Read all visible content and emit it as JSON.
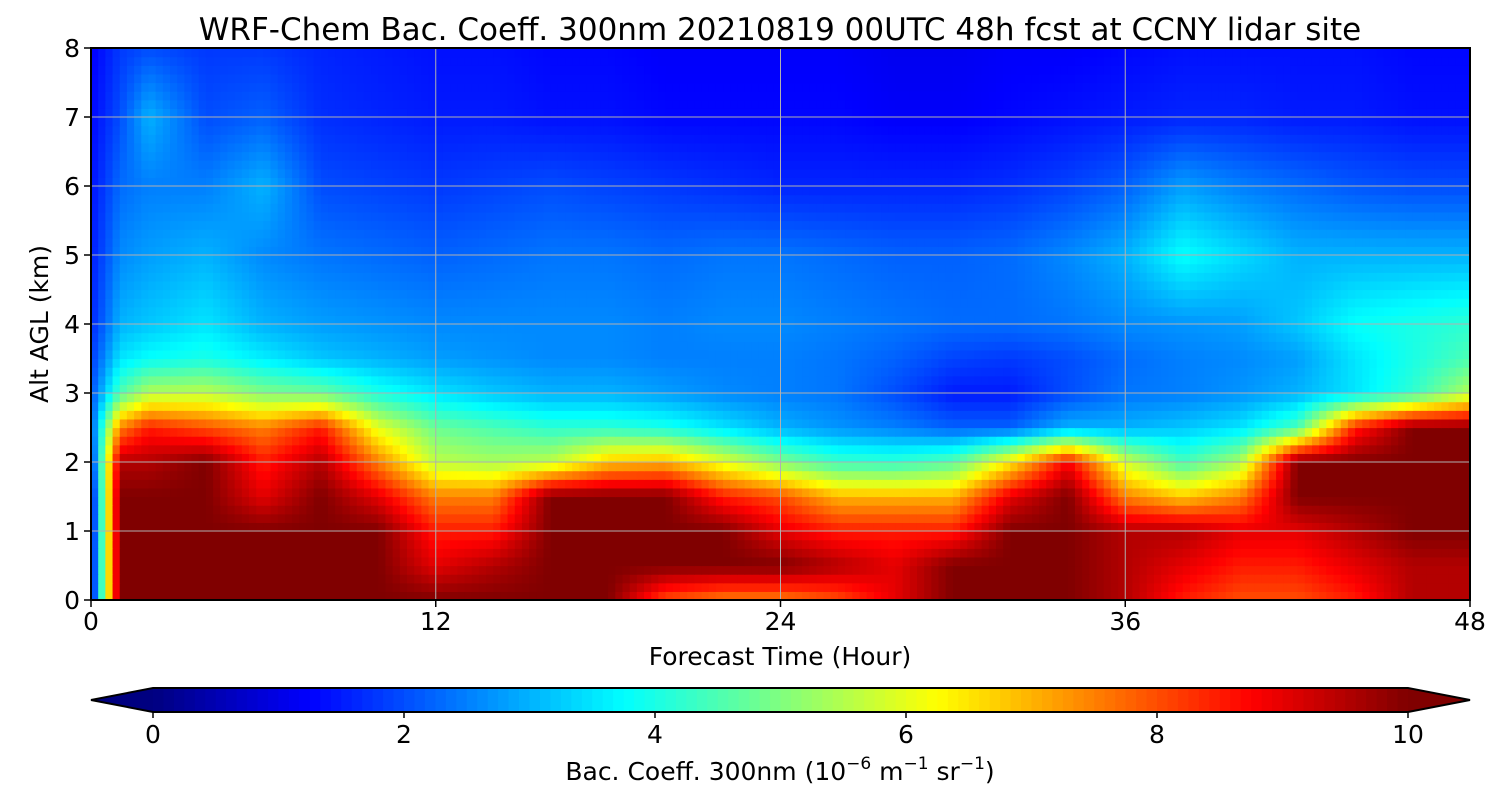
{
  "chart_data": {
    "type": "heatmap",
    "title": "WRF-Chem Bac. Coeff. 300nm  20210819 00UTC 48h fcst at CCNY lidar site",
    "xlabel": "Forecast Time (Hour)",
    "ylabel": "Alt AGL (km)",
    "xlim": [
      0,
      48
    ],
    "ylim": [
      0,
      8
    ],
    "x_ticks": [
      "0",
      "12",
      "24",
      "36",
      "48"
    ],
    "y_ticks": [
      "0",
      "1",
      "2",
      "3",
      "4",
      "5",
      "6",
      "7",
      "8"
    ],
    "grid": true,
    "colormap": "jet",
    "colorbar": {
      "label_main": "Bac. Coeff. 300nm  (10",
      "label_exp1": "−6",
      "label_mid": " m",
      "label_exp2": "−1",
      "label_mid2": " sr",
      "label_exp3": "−1",
      "label_end": ")",
      "range": [
        0,
        10
      ],
      "ticks": [
        "0",
        "2",
        "4",
        "6",
        "8",
        "10"
      ],
      "extend": "both",
      "placement": "bottom"
    },
    "x": [
      0,
      1,
      2,
      4,
      6,
      8,
      10,
      12,
      14,
      16,
      18,
      20,
      22,
      24,
      26,
      28,
      30,
      32,
      34,
      36,
      38,
      40,
      42,
      44,
      46,
      48
    ],
    "y": [
      0,
      0.5,
      1,
      1.5,
      2,
      2.5,
      3,
      3.5,
      4,
      5,
      6,
      7,
      8
    ],
    "values": [
      [
        1.0,
        10,
        10,
        10,
        10,
        10,
        10,
        10,
        10,
        10,
        10,
        8.0,
        7.5,
        7.5,
        8.0,
        9.0,
        10,
        10,
        10,
        9.5,
        8.5,
        8.0,
        8.0,
        8.5,
        9.5,
        9.5
      ],
      [
        1.0,
        10,
        10,
        10,
        10,
        10,
        10,
        9.0,
        9.5,
        10,
        10,
        10,
        10,
        10,
        9.5,
        9.0,
        10,
        10,
        10,
        9.5,
        9.0,
        8.5,
        8.5,
        9.0,
        9.5,
        9.5
      ],
      [
        1.0,
        10,
        10,
        10,
        10,
        10,
        10,
        8.5,
        8.5,
        10,
        10,
        10,
        10,
        9.0,
        8.5,
        8.5,
        8.5,
        10,
        10,
        9.5,
        9.5,
        9.0,
        9.0,
        9.5,
        10,
        10
      ],
      [
        1.0,
        10,
        10,
        10,
        9.0,
        10,
        9.0,
        7.5,
        7.5,
        10,
        10,
        10,
        8.5,
        8.0,
        7.0,
        7.0,
        7.0,
        9.0,
        10,
        7.5,
        6.8,
        7.5,
        10,
        10,
        10,
        10
      ],
      [
        1.5,
        9.5,
        9.5,
        10,
        8.5,
        9.5,
        7.5,
        5.6,
        5.4,
        5.6,
        6.8,
        7.0,
        6.0,
        5.0,
        4.3,
        4.2,
        4.6,
        6.4,
        8.8,
        5.8,
        4.4,
        5.4,
        10,
        10,
        10,
        10
      ],
      [
        2.0,
        7.5,
        8.5,
        8.0,
        7.5,
        8.5,
        6.0,
        4.8,
        4.5,
        4.2,
        4.2,
        4.0,
        3.5,
        3.0,
        2.7,
        2.5,
        2.2,
        2.2,
        3.0,
        3.0,
        3.2,
        3.5,
        4.5,
        8.5,
        10,
        10
      ],
      [
        2.0,
        4.5,
        5.5,
        5.6,
        5.0,
        4.8,
        4.0,
        3.5,
        3.2,
        3.0,
        3.0,
        2.8,
        2.6,
        2.5,
        2.4,
        2.0,
        1.5,
        1.5,
        2.0,
        2.4,
        2.5,
        2.7,
        3.0,
        3.5,
        4.2,
        5.5
      ],
      [
        1.8,
        3.5,
        3.8,
        4.0,
        3.6,
        3.2,
        3.0,
        2.8,
        2.7,
        2.6,
        2.6,
        2.5,
        2.5,
        2.5,
        2.4,
        2.2,
        1.9,
        1.8,
        2.0,
        2.3,
        2.5,
        2.6,
        2.8,
        3.5,
        4.0,
        4.5
      ],
      [
        1.6,
        3.0,
        3.2,
        3.5,
        3.0,
        2.8,
        2.7,
        2.6,
        2.6,
        2.6,
        2.6,
        2.5,
        2.6,
        2.6,
        2.5,
        2.4,
        2.3,
        2.3,
        2.4,
        2.6,
        2.7,
        2.8,
        3.2,
        3.8,
        4.0,
        4.2
      ],
      [
        1.5,
        2.6,
        2.8,
        3.0,
        2.6,
        2.4,
        2.3,
        2.2,
        2.3,
        2.4,
        2.4,
        2.3,
        2.4,
        2.4,
        2.3,
        2.2,
        2.2,
        2.3,
        2.6,
        3.0,
        3.8,
        3.4,
        3.0,
        3.0,
        3.0,
        3.0
      ],
      [
        1.4,
        2.3,
        2.5,
        2.5,
        3.0,
        2.0,
        1.9,
        1.8,
        1.9,
        2.0,
        1.9,
        1.8,
        1.7,
        1.6,
        1.6,
        1.6,
        1.6,
        1.7,
        1.9,
        2.2,
        2.8,
        2.5,
        2.3,
        2.1,
        2.0,
        2.0
      ],
      [
        1.3,
        2.0,
        3.0,
        2.0,
        2.2,
        1.7,
        1.6,
        1.5,
        1.5,
        1.4,
        1.4,
        1.3,
        1.3,
        1.3,
        1.3,
        1.2,
        1.2,
        1.3,
        1.4,
        1.5,
        1.6,
        1.6,
        1.5,
        1.5,
        1.4,
        1.4
      ],
      [
        1.2,
        1.8,
        2.0,
        1.8,
        1.8,
        1.6,
        1.5,
        1.4,
        1.4,
        1.3,
        1.3,
        1.2,
        1.2,
        1.2,
        1.2,
        1.1,
        1.1,
        1.2,
        1.2,
        1.3,
        1.4,
        1.4,
        1.4,
        1.4,
        1.3,
        1.3
      ]
    ]
  }
}
